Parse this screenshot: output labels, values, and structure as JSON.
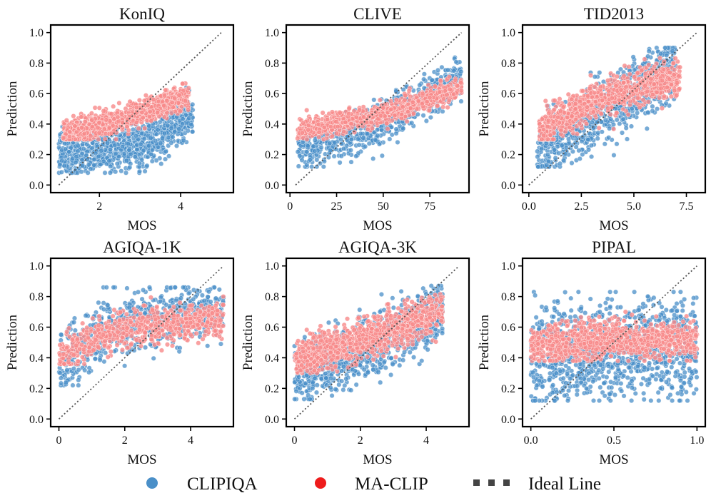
{
  "colors": {
    "clipiqa": "#4a8fc8",
    "maclip": "#f88a8a",
    "maclip_legend": "#ee1c1c",
    "ideal": "#555555"
  },
  "legend": {
    "items": [
      {
        "label": "CLIPIQA",
        "marker": "circle",
        "color": "#4a8fc8"
      },
      {
        "label": "MA-CLIP",
        "marker": "circle",
        "color": "#ee1c1c"
      },
      {
        "label": "Ideal Line",
        "marker": "dotted-square-line",
        "color": "#444444"
      }
    ]
  },
  "chart_data": [
    {
      "type": "scatter",
      "title": "KonIQ",
      "xlabel": "MOS",
      "ylabel": "Prediction",
      "xlim": [
        0.8,
        5.3
      ],
      "ylim": [
        -0.05,
        1.05
      ],
      "xticks": [
        2,
        4
      ],
      "xtick_labels": [
        "2",
        "4"
      ],
      "yticks": [
        0.0,
        0.2,
        0.4,
        0.6,
        0.8,
        1.0
      ],
      "ytick_labels": [
        "0.0",
        "0.2",
        "0.4",
        "0.6",
        "0.8",
        "1.0"
      ],
      "ideal_line": [
        [
          1.0,
          0.0
        ],
        [
          5.0,
          1.0
        ]
      ],
      "series": [
        {
          "name": "CLIPIQA",
          "x_range": [
            1.0,
            4.3
          ],
          "trend": [
            [
              1.0,
              0.2
            ],
            [
              3.0,
              0.25
            ],
            [
              4.2,
              0.45
            ]
          ],
          "spread": 0.07,
          "clip_y": [
            0.08,
            0.78
          ],
          "n_points": 900
        },
        {
          "name": "MA-CLIP",
          "x_range": [
            1.1,
            4.2
          ],
          "trend": [
            [
              1.1,
              0.34
            ],
            [
              2.5,
              0.42
            ],
            [
              4.1,
              0.58
            ]
          ],
          "spread": 0.04,
          "clip_y": [
            0.3,
            0.76
          ],
          "n_points": 900
        }
      ]
    },
    {
      "type": "scatter",
      "title": "CLIVE",
      "xlabel": "MOS",
      "ylabel": "Prediction",
      "xlim": [
        -2,
        96
      ],
      "ylim": [
        -0.05,
        1.05
      ],
      "xticks": [
        0,
        25,
        50,
        75
      ],
      "xtick_labels": [
        "0",
        "25",
        "50",
        "75"
      ],
      "yticks": [
        0.0,
        0.2,
        0.4,
        0.6,
        0.8,
        1.0
      ],
      "ytick_labels": [
        "0.0",
        "0.2",
        "0.4",
        "0.6",
        "0.8",
        "1.0"
      ],
      "ideal_line": [
        [
          3,
          0.0
        ],
        [
          92,
          1.0
        ]
      ],
      "series": [
        {
          "name": "CLIPIQA",
          "x_range": [
            4,
            92
          ],
          "trend": [
            [
              4,
              0.22
            ],
            [
              50,
              0.4
            ],
            [
              92,
              0.72
            ]
          ],
          "spread": 0.07,
          "clip_y": [
            0.12,
            0.84
          ],
          "n_points": 700
        },
        {
          "name": "MA-CLIP",
          "x_range": [
            4,
            92
          ],
          "trend": [
            [
              4,
              0.36
            ],
            [
              50,
              0.46
            ],
            [
              92,
              0.65
            ]
          ],
          "spread": 0.035,
          "clip_y": [
            0.3,
            0.76
          ],
          "n_points": 800
        }
      ]
    },
    {
      "type": "scatter",
      "title": "TID2013",
      "xlabel": "MOS",
      "ylabel": "Prediction",
      "xlim": [
        -0.3,
        8.4
      ],
      "ylim": [
        -0.05,
        1.05
      ],
      "xticks": [
        0.0,
        2.5,
        5.0,
        7.5
      ],
      "xtick_labels": [
        "0.0",
        "2.5",
        "5.0",
        "7.5"
      ],
      "yticks": [
        0.0,
        0.2,
        0.4,
        0.6,
        0.8,
        1.0
      ],
      "ytick_labels": [
        "0.0",
        "0.2",
        "0.4",
        "0.6",
        "0.8",
        "1.0"
      ],
      "ideal_line": [
        [
          0.0,
          0.0
        ],
        [
          8.0,
          1.0
        ]
      ],
      "series": [
        {
          "name": "CLIPIQA",
          "x_range": [
            0.4,
            7.0
          ],
          "trend": [
            [
              0.4,
              0.2
            ],
            [
              3.0,
              0.45
            ],
            [
              6.8,
              0.75
            ]
          ],
          "spread": 0.1,
          "clip_y": [
            0.12,
            0.9
          ],
          "n_points": 900
        },
        {
          "name": "MA-CLIP",
          "x_range": [
            0.5,
            7.2
          ],
          "trend": [
            [
              0.5,
              0.35
            ],
            [
              3.0,
              0.55
            ],
            [
              6.8,
              0.7
            ]
          ],
          "spread": 0.06,
          "clip_y": [
            0.3,
            0.85
          ],
          "n_points": 900
        }
      ]
    },
    {
      "type": "scatter",
      "title": "AGIQA-1K",
      "xlabel": "MOS",
      "ylabel": "Prediction",
      "xlim": [
        -0.25,
        5.3
      ],
      "ylim": [
        -0.05,
        1.05
      ],
      "xticks": [
        0,
        2,
        4
      ],
      "xtick_labels": [
        "0",
        "2",
        "4"
      ],
      "yticks": [
        0.0,
        0.2,
        0.4,
        0.6,
        0.8,
        1.0
      ],
      "ytick_labels": [
        "0.0",
        "0.2",
        "0.4",
        "0.6",
        "0.8",
        "1.0"
      ],
      "ideal_line": [
        [
          0.0,
          0.0
        ],
        [
          5.0,
          1.0
        ]
      ],
      "series": [
        {
          "name": "CLIPIQA",
          "x_range": [
            0.0,
            5.0
          ],
          "trend": [
            [
              0.0,
              0.33
            ],
            [
              1.5,
              0.6
            ],
            [
              5.0,
              0.72
            ]
          ],
          "spread": 0.1,
          "clip_y": [
            0.22,
            0.86
          ],
          "n_points": 650
        },
        {
          "name": "MA-CLIP",
          "x_range": [
            0.0,
            5.0
          ],
          "trend": [
            [
              0.0,
              0.41
            ],
            [
              1.5,
              0.58
            ],
            [
              5.0,
              0.66
            ]
          ],
          "spread": 0.06,
          "clip_y": [
            0.36,
            0.8
          ],
          "n_points": 700
        }
      ]
    },
    {
      "type": "scatter",
      "title": "AGIQA-3K",
      "xlabel": "MOS",
      "ylabel": "Prediction",
      "xlim": [
        -0.25,
        5.3
      ],
      "ylim": [
        -0.05,
        1.05
      ],
      "xticks": [
        0,
        2,
        4
      ],
      "xtick_labels": [
        "0",
        "2",
        "4"
      ],
      "yticks": [
        0.0,
        0.2,
        0.4,
        0.6,
        0.8,
        1.0
      ],
      "ytick_labels": [
        "0.0",
        "0.2",
        "0.4",
        "0.6",
        "0.8",
        "1.0"
      ],
      "ideal_line": [
        [
          0.0,
          0.0
        ],
        [
          5.0,
          1.0
        ]
      ],
      "series": [
        {
          "name": "CLIPIQA",
          "x_range": [
            0.0,
            4.5
          ],
          "trend": [
            [
              0.0,
              0.28
            ],
            [
              2.5,
              0.5
            ],
            [
              4.5,
              0.72
            ]
          ],
          "spread": 0.1,
          "clip_y": [
            0.13,
            0.87
          ],
          "n_points": 1000
        },
        {
          "name": "MA-CLIP",
          "x_range": [
            0.0,
            4.5
          ],
          "trend": [
            [
              0.0,
              0.38
            ],
            [
              2.5,
              0.55
            ],
            [
              4.5,
              0.7
            ]
          ],
          "spread": 0.06,
          "clip_y": [
            0.3,
            0.82
          ],
          "n_points": 1000
        }
      ]
    },
    {
      "type": "scatter",
      "title": "PIPAL",
      "xlabel": "MOS",
      "ylabel": "Prediction",
      "xlim": [
        -0.05,
        1.05
      ],
      "ylim": [
        -0.05,
        1.05
      ],
      "xticks": [
        0.0,
        0.5,
        1.0
      ],
      "xtick_labels": [
        "0.0",
        "0.5",
        "1.0"
      ],
      "yticks": [
        0.0,
        0.2,
        0.4,
        0.6,
        0.8,
        1.0
      ],
      "ytick_labels": [
        "0.0",
        "0.2",
        "0.4",
        "0.6",
        "0.8",
        "1.0"
      ],
      "ideal_line": [
        [
          0.0,
          0.0
        ],
        [
          1.0,
          1.0
        ]
      ],
      "series": [
        {
          "name": "CLIPIQA",
          "x_range": [
            0.0,
            1.0
          ],
          "trend": [
            [
              0.0,
              0.42
            ],
            [
              0.5,
              0.45
            ],
            [
              1.0,
              0.45
            ]
          ],
          "spread": 0.16,
          "clip_y": [
            0.12,
            0.83
          ],
          "n_points": 1100
        },
        {
          "name": "MA-CLIP",
          "x_range": [
            0.0,
            1.0
          ],
          "trend": [
            [
              0.0,
              0.48
            ],
            [
              0.5,
              0.52
            ],
            [
              1.0,
              0.5
            ]
          ],
          "spread": 0.06,
          "clip_y": [
            0.38,
            0.7
          ],
          "n_points": 1000
        }
      ]
    }
  ]
}
